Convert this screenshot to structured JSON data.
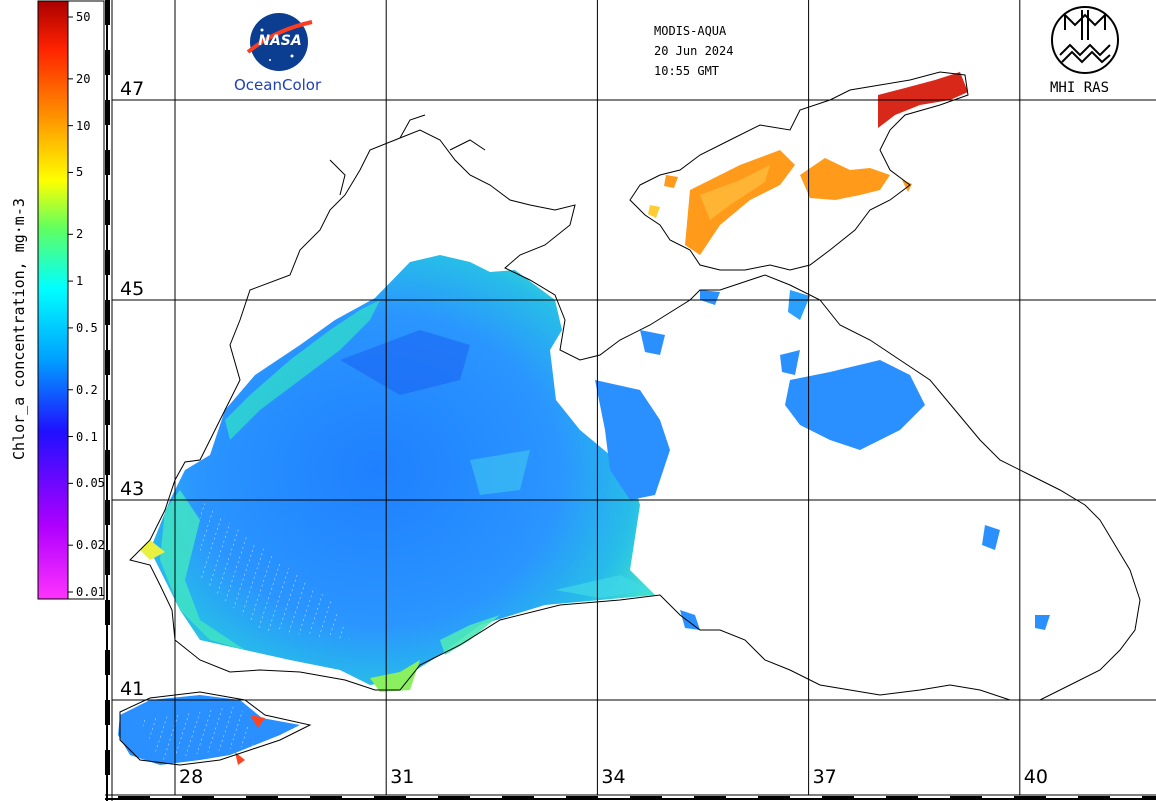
{
  "header": {
    "sensor": "MODIS-AQUA",
    "date": "20 Jun 2024",
    "time": "10:55 GMT"
  },
  "logos": {
    "nasa_text": "NASA",
    "oceancolor": "OceanColor",
    "mhi_ras": "MHI RAS"
  },
  "colorbar": {
    "title": "Chlor_a concentration, mg·m-3",
    "ticks": [
      {
        "label": "50",
        "value": 50
      },
      {
        "label": "20",
        "value": 20
      },
      {
        "label": "10",
        "value": 10
      },
      {
        "label": "5",
        "value": 5
      },
      {
        "label": "2",
        "value": 2
      },
      {
        "label": "1",
        "value": 1
      },
      {
        "label": "0.5",
        "value": 0.5
      },
      {
        "label": "0.2",
        "value": 0.2
      },
      {
        "label": "0.1",
        "value": 0.1
      },
      {
        "label": "0.05",
        "value": 0.05
      },
      {
        "label": "0.02",
        "value": 0.02
      },
      {
        "label": "0.01",
        "value": 0.01
      }
    ],
    "scale": "log",
    "colors": [
      "#ff33ff",
      "#9b00ff",
      "#0000ff",
      "#00b0ff",
      "#00ffff",
      "#60ff60",
      "#ffff00",
      "#ff9900",
      "#ff3300",
      "#990000"
    ]
  },
  "grid": {
    "latitudes": [
      {
        "label": "47",
        "value": 47
      },
      {
        "label": "45",
        "value": 45
      },
      {
        "label": "43",
        "value": 43
      },
      {
        "label": "41",
        "value": 41
      }
    ],
    "longitudes": [
      {
        "label": "28",
        "value": 28
      },
      {
        "label": "31",
        "value": 31
      },
      {
        "label": "34",
        "value": 34
      },
      {
        "label": "37",
        "value": 37
      },
      {
        "label": "40",
        "value": 40
      }
    ]
  },
  "colors": {
    "sea_low": "#1f78ff",
    "sea_mid": "#2aa6ff",
    "coastal_cyan": "#2ee6e6",
    "coastal_green": "#7af27a",
    "azov_orange": "#ff9a1a",
    "azov_red": "#d8281a",
    "nasa_blue": "#0b3d91",
    "nasa_red": "#fc3d21"
  }
}
